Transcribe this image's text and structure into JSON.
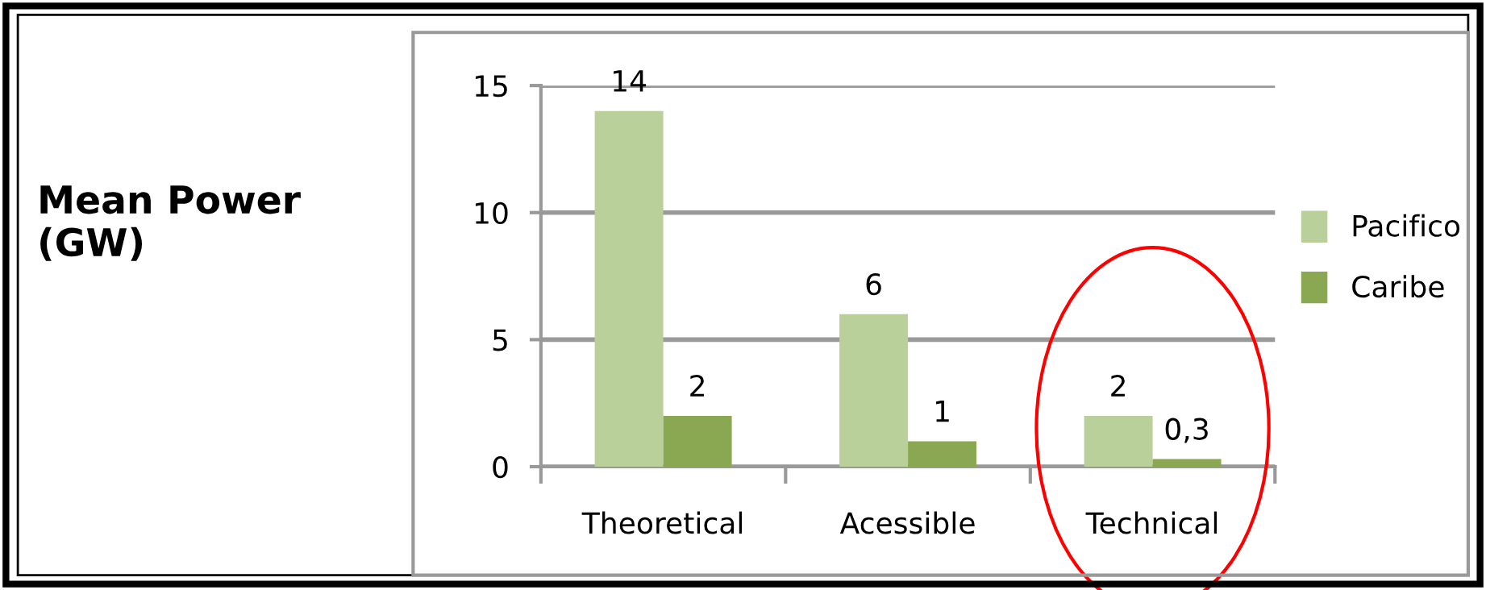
{
  "chart_data": {
    "type": "bar",
    "ylabel": "Mean Power\n(GW)",
    "categories": [
      "Theoretical",
      "Acessible",
      "Technical"
    ],
    "series": [
      {
        "name": "Pacifico",
        "color": "#bad09a",
        "values": [
          14,
          6,
          2
        ],
        "value_labels": [
          "14",
          "6",
          "2"
        ]
      },
      {
        "name": "Caribe",
        "color": "#8aa851",
        "values": [
          2,
          1,
          0.3
        ],
        "value_labels": [
          "2",
          "1",
          "0,3"
        ]
      }
    ],
    "ylim": [
      0,
      15
    ],
    "yticks": [
      0,
      5,
      10,
      15
    ],
    "grid": "y",
    "legend": "right"
  }
}
